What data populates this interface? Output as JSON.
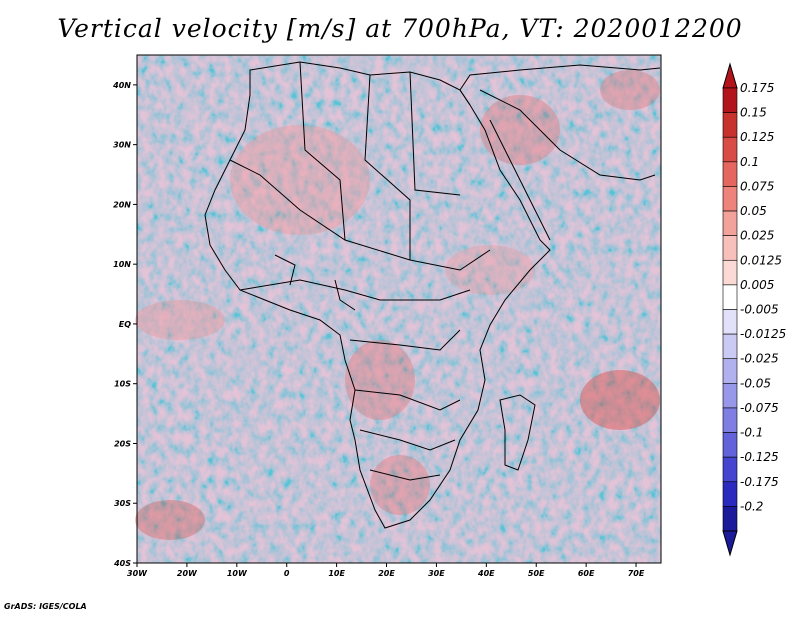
{
  "title": "Vertical velocity [m/s] at 700hPa, VT: 2020012200",
  "credit": "GrADS: IGES/COLA",
  "map": {
    "region": "Africa",
    "variable": "vertical velocity",
    "level": "700hPa",
    "lon_range": [
      -30,
      75
    ],
    "lat_range": [
      -40,
      45
    ]
  },
  "lon_ticks": [
    "30W",
    "20W",
    "10W",
    "0",
    "10E",
    "20E",
    "30E",
    "40E",
    "50E",
    "60E",
    "70E"
  ],
  "lat_ticks": [
    "40N",
    "30N",
    "20N",
    "10N",
    "EQ",
    "10S",
    "20S",
    "30S",
    "40S"
  ],
  "colorbar": {
    "labels": [
      "0.175",
      "0.15",
      "0.125",
      "0.1",
      "0.075",
      "0.05",
      "0.025",
      "0.0125",
      "0.005",
      "-0.005",
      "-0.0125",
      "-0.025",
      "-0.05",
      "-0.075",
      "-0.1",
      "-0.125",
      "-0.175",
      "-0.2"
    ],
    "colors": [
      "#b3141c",
      "#c8322d",
      "#d94c45",
      "#e4665f",
      "#ed837b",
      "#f3a19b",
      "#f8c0bb",
      "#fbdad6",
      "#ffffff",
      "#e1e1fa",
      "#cacaf5",
      "#b1b1f0",
      "#9898ea",
      "#7e7ee3",
      "#6262da",
      "#4545cf",
      "#2a2abf",
      "#1a1a9a"
    ]
  }
}
